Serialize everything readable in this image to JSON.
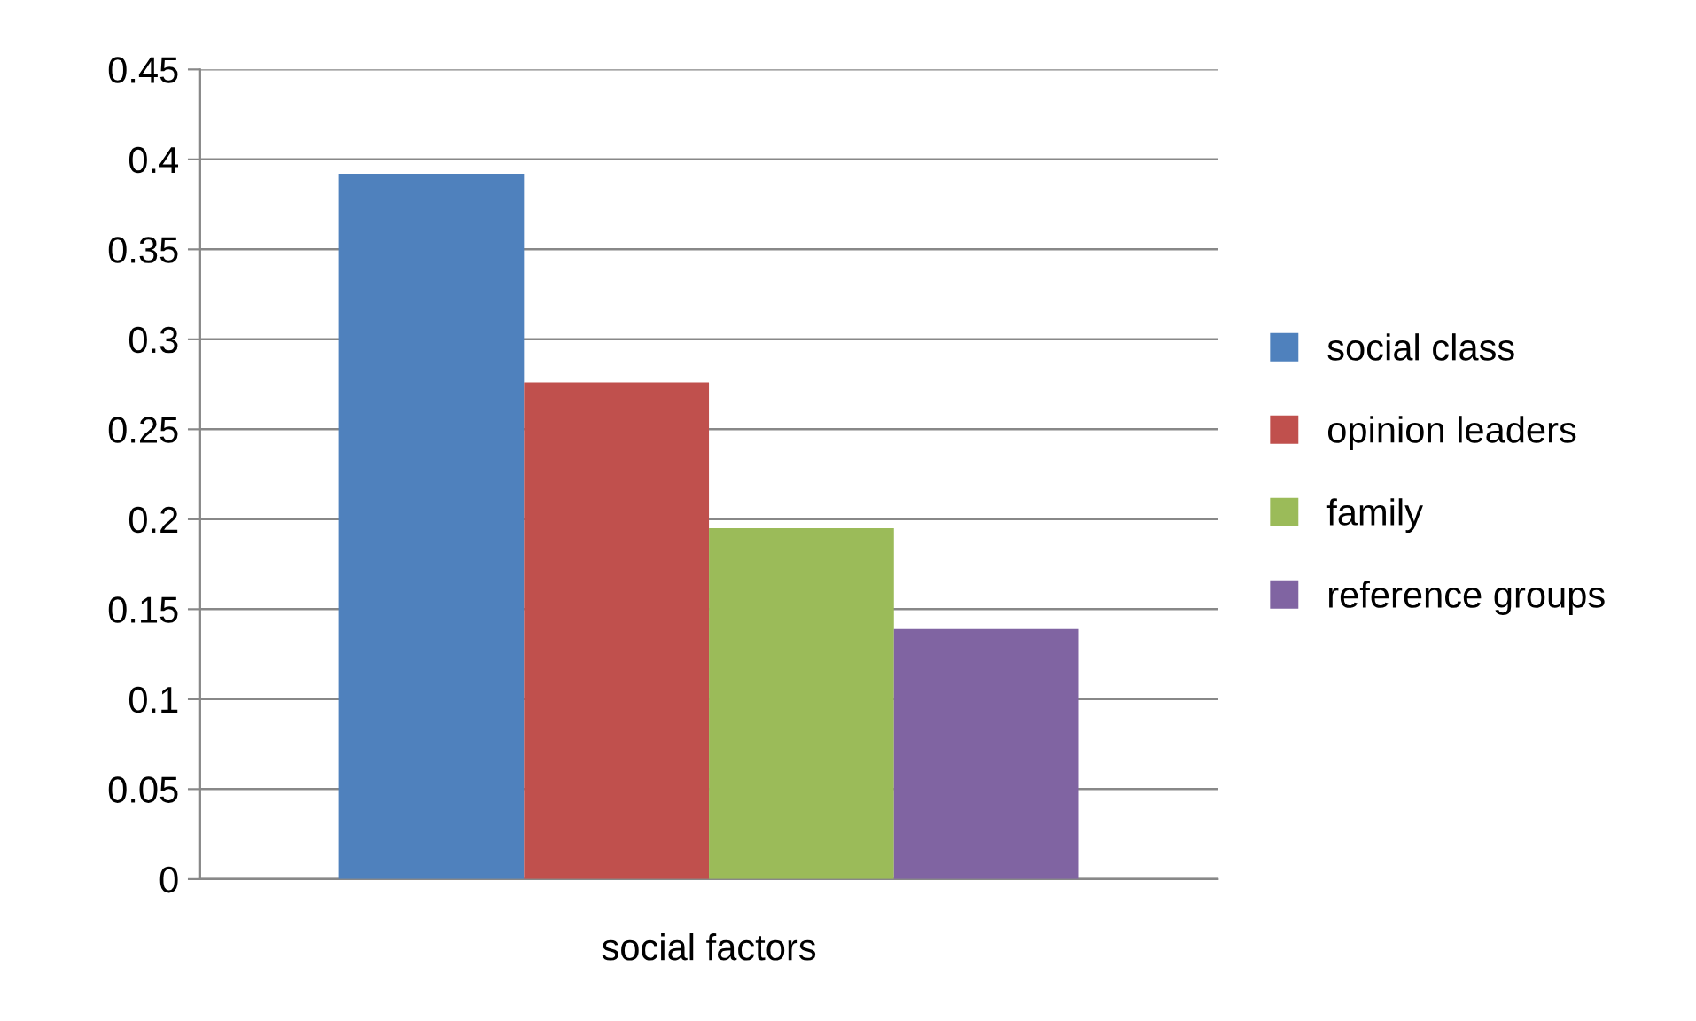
{
  "chart_data": {
    "type": "bar",
    "categories": [
      "social factors"
    ],
    "series": [
      {
        "name": "social class",
        "color": "#4f81bd",
        "values": [
          0.392
        ]
      },
      {
        "name": "opinion leaders",
        "color": "#c0504d",
        "values": [
          0.276
        ]
      },
      {
        "name": "family",
        "color": "#9bbb59",
        "values": [
          0.195
        ]
      },
      {
        "name": "reference groups",
        "color": "#8064a2",
        "values": [
          0.139
        ]
      }
    ],
    "ylim": [
      0,
      0.45
    ],
    "yticks": [
      0,
      0.05,
      0.1,
      0.15,
      0.2,
      0.25,
      0.3,
      0.35,
      0.4,
      0.45
    ],
    "grid": "y",
    "legend": "right"
  }
}
